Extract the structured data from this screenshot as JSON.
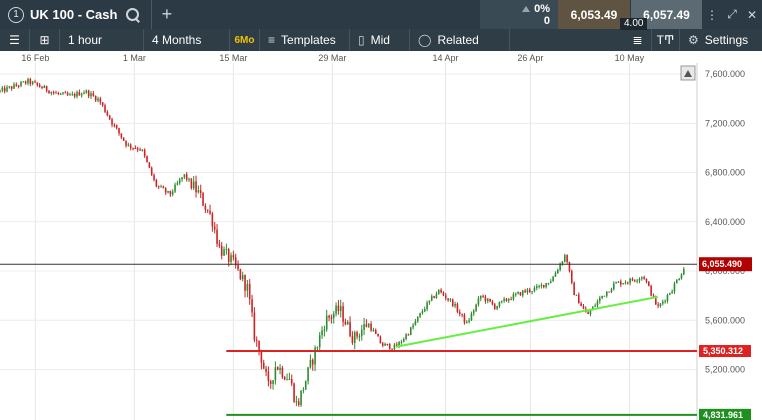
{
  "topbar": {
    "tab_number": "1",
    "instrument": "UK 100 - Cash",
    "search_icon": "search-icon",
    "add_icon": "plus-icon",
    "change_pct": "0%",
    "change_value": "0",
    "sell_price": "6,053.49",
    "buy_price": "6,057.49",
    "spread": "4.00"
  },
  "toolbar": {
    "interval": "1 hour",
    "range": "4 Months",
    "range_badge": "6Mo",
    "templates": "Templates",
    "price_type": "Mid",
    "related": "Related",
    "text_tool": "TͲ",
    "settings": "Settings"
  },
  "colors": {
    "up": "#2e8b2e",
    "down": "#cc2222",
    "trendline": "#66ee44",
    "support_red": "#dd2222",
    "support_green": "#1f8f1f",
    "current_tag": "#b30000"
  },
  "chart_data": {
    "type": "candlestick",
    "x_ticks": [
      "16 Feb",
      "1 Mar",
      "15 Mar",
      "29 Mar",
      "14 Apr",
      "26 Apr",
      "10 May"
    ],
    "y_ticks": [
      "7,600.000",
      "7,200.000",
      "6,800.000",
      "6,400.000",
      "6,000.000",
      "5,600.000",
      "5,200.000"
    ],
    "ylim": [
      4790,
      7690
    ],
    "current_price": "6,055.490",
    "levels": [
      {
        "label": "5,350.312",
        "value": 5350.312
      },
      {
        "label": "4,831.961",
        "value": 4831.961
      }
    ],
    "trendline": {
      "start": [
        "7 Apr",
        5385
      ],
      "end": [
        "14 May",
        5790
      ]
    },
    "price_path": [
      [
        "11 Feb",
        7460
      ],
      [
        "13 Feb",
        7500
      ],
      [
        "15 Feb",
        7540
      ],
      [
        "17 Feb",
        7490
      ],
      [
        "19 Feb",
        7440
      ],
      [
        "21 Feb",
        7420
      ],
      [
        "23 Feb",
        7460
      ],
      [
        "25 Feb",
        7390
      ],
      [
        "27 Feb",
        7190
      ],
      [
        "29 Feb",
        7020
      ],
      [
        "2 Mar",
        6990
      ],
      [
        "4 Mar",
        6700
      ],
      [
        "6 Mar",
        6620
      ],
      [
        "8 Mar",
        6780
      ],
      [
        "10 Mar",
        6640
      ],
      [
        "12 Mar",
        6420
      ],
      [
        "13 Mar",
        6190
      ],
      [
        "15 Mar",
        6060
      ],
      [
        "17 Mar",
        5860
      ],
      [
        "18 Mar",
        5470
      ],
      [
        "19 Mar",
        5290
      ],
      [
        "20 Mar",
        5040
      ],
      [
        "21 Mar",
        5240
      ],
      [
        "23 Mar",
        5120
      ],
      [
        "24 Mar",
        4900
      ],
      [
        "26 Mar",
        5250
      ],
      [
        "28 Mar",
        5600
      ],
      [
        "30 Mar",
        5690
      ],
      [
        "1 Apr",
        5450
      ],
      [
        "3 Apr",
        5580
      ],
      [
        "5 Apr",
        5400
      ],
      [
        "7 Apr",
        5380
      ],
      [
        "9 Apr",
        5520
      ],
      [
        "11 Apr",
        5700
      ],
      [
        "13 Apr",
        5840
      ],
      [
        "15 Apr",
        5740
      ],
      [
        "17 Apr",
        5570
      ],
      [
        "19 Apr",
        5800
      ],
      [
        "21 Apr",
        5710
      ],
      [
        "23 Apr",
        5780
      ],
      [
        "25 Apr",
        5830
      ],
      [
        "27 Apr",
        5860
      ],
      [
        "29 Apr",
        5930
      ],
      [
        "1 May",
        6140
      ],
      [
        "2 May",
        5840
      ],
      [
        "4 May",
        5640
      ],
      [
        "6 May",
        5790
      ],
      [
        "8 May",
        5900
      ],
      [
        "10 May",
        5920
      ],
      [
        "12 May",
        5960
      ],
      [
        "14 May",
        5700
      ],
      [
        "16 May",
        5850
      ],
      [
        "18 May",
        6055
      ]
    ]
  }
}
